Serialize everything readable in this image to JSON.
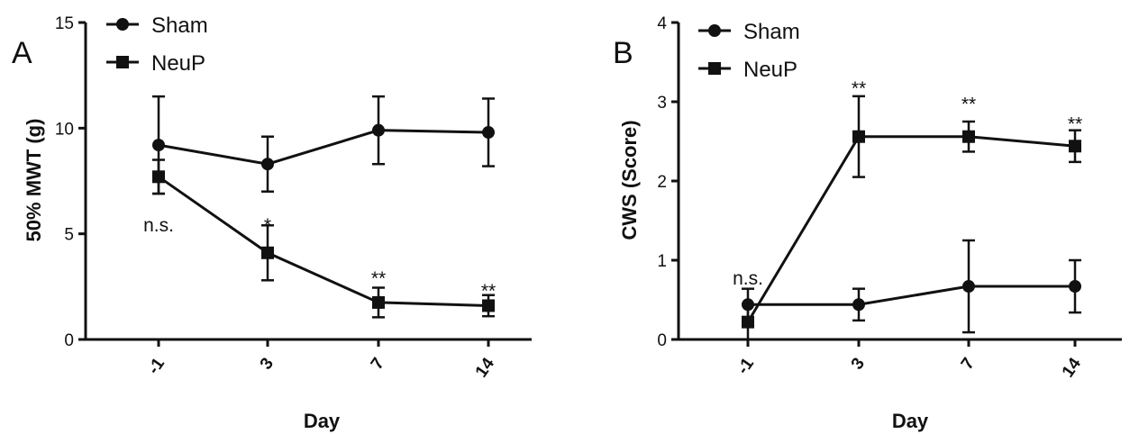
{
  "chart_data": [
    {
      "type": "line",
      "panel_label": "A",
      "xlabel": "Day",
      "ylabel": "50% MWT (g)",
      "categories": [
        "-1",
        "3",
        "7",
        "14"
      ],
      "ylim": [
        0,
        15
      ],
      "yticks": [
        "0",
        "5",
        "10",
        "15"
      ],
      "legend_position": "top-left",
      "series": [
        {
          "name": "Sham",
          "marker": "circle",
          "values": [
            9.2,
            8.3,
            9.9,
            9.8
          ],
          "err": [
            2.3,
            1.3,
            1.6,
            1.6
          ]
        },
        {
          "name": "NeuP",
          "marker": "square",
          "values": [
            7.7,
            4.1,
            1.75,
            1.6
          ],
          "err": [
            0.8,
            1.3,
            0.7,
            0.5
          ]
        }
      ],
      "annotations": [
        {
          "category": "-1",
          "text": "n.s.",
          "y": 5.7
        },
        {
          "category": "3",
          "text": "*",
          "y": 5.7
        },
        {
          "category": "7",
          "text": "**",
          "y": 3.2
        },
        {
          "category": "14",
          "text": "**",
          "y": 2.6
        }
      ]
    },
    {
      "type": "line",
      "panel_label": "B",
      "xlabel": "Day",
      "ylabel": "CWS (Score)",
      "categories": [
        "-1",
        "3",
        "7",
        "14"
      ],
      "ylim": [
        0,
        4
      ],
      "yticks": [
        "0",
        "1",
        "2",
        "3",
        "4"
      ],
      "legend_position": "top-left",
      "series": [
        {
          "name": "Sham",
          "marker": "circle",
          "values": [
            0.44,
            0.44,
            0.67,
            0.67
          ],
          "err": [
            0.2,
            0.2,
            0.58,
            0.33
          ]
        },
        {
          "name": "NeuP",
          "marker": "square",
          "values": [
            0.22,
            2.56,
            2.56,
            2.44
          ],
          "err": [
            0.22,
            0.51,
            0.19,
            0.2
          ]
        }
      ],
      "annotations": [
        {
          "category": "-1",
          "text": "n.s.",
          "y": 0.85
        },
        {
          "category": "3",
          "text": "**",
          "y": 3.25
        },
        {
          "category": "7",
          "text": "**",
          "y": 3.05
        },
        {
          "category": "14",
          "text": "**",
          "y": 2.8
        }
      ]
    }
  ]
}
